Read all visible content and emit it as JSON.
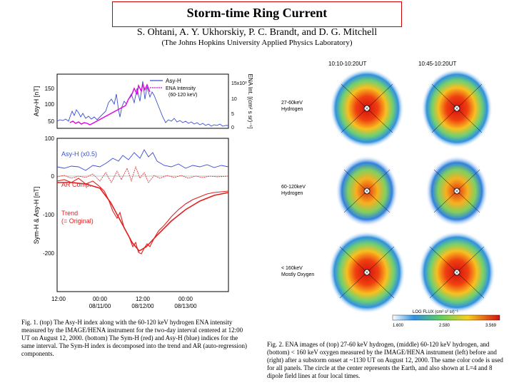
{
  "header": {
    "title": "Storm-time Ring Current",
    "authors": "S. Ohtani, A. Y. Ukhorskiy, P. C. Brandt, and D. G. Mitchell",
    "affiliation": "(The Johns Hopkins University Applied Physics Laboratory)"
  },
  "figure1": {
    "top_panel": {
      "ylabel_left": "Asy-H [nT]",
      "ylabel_right": "ENA Int. [(cm² s sr)⁻¹]",
      "left_ticks": [
        "150",
        "100",
        "50"
      ],
      "right_ticks": [
        "15x10³",
        "10",
        "5",
        "0"
      ],
      "legend": [
        "Asy-H",
        "ENA Intensity",
        "(60-120 keV)"
      ],
      "colors": {
        "asy": "#3a4fd0",
        "ena": "#e000e0"
      }
    },
    "bottom_panel": {
      "ylabel": "Sym-H & Asy-H [nT]",
      "y_ticks": [
        "100",
        "0",
        "-100",
        "-200"
      ],
      "labels": {
        "asy": "Asy-H (x0.5)",
        "ar": "AR Comp.",
        "trend": "Trend",
        "trend2": "(= Original)"
      },
      "colors": {
        "asy": "#3a4fd0",
        "sym": "#e02020"
      },
      "x_ticks": [
        "12:00",
        "00:00",
        "12:00",
        "00:00"
      ],
      "x_dates": [
        "08/11/00",
        "08/12/00",
        "08/13/00"
      ]
    }
  },
  "figure2": {
    "times": [
      "10:10-10:20UT",
      "10:45-10:20UT"
    ],
    "row_labels": [
      [
        "27-60keV",
        "Hydrogen"
      ],
      [
        "60-120keV",
        "Hydrogen"
      ],
      [
        "< 160keV",
        "Mostly Oxygen"
      ]
    ],
    "colorbar_label": "LOG FLUX (cm² s² sr)⁻¹",
    "colorbar_ticks": [
      "1.600",
      "2.580",
      "3.569"
    ]
  },
  "captions": {
    "fig1": "Fig. 1. (top) The Asy-H index along with the 60-120 keV hydrogen ENA intensity measured by the IMAGE/HENA instrument for the two-day interval centered at 12:00 UT on August 12, 2000. (bottom) The Sym-H (red) and Asy-H (blue) indices for the same interval. The Sym-H index is decomposed into the trend and AR (auto-regression) components.",
    "fig2": "Fig. 2. ENA images of (top) 27-60 keV hydrogen, (middle) 60-120 keV hydrogen, and (bottom) < 160 keV oxygen measured by the IMAGE/HENA instrument (left) before and (right) after a substorm onset at ~1130 UT on August 12, 2000. The same color code is used for all panels. The circle at the center represents the Earth, and also shown at L=4 and 8 dipole field lines at four local times."
  }
}
